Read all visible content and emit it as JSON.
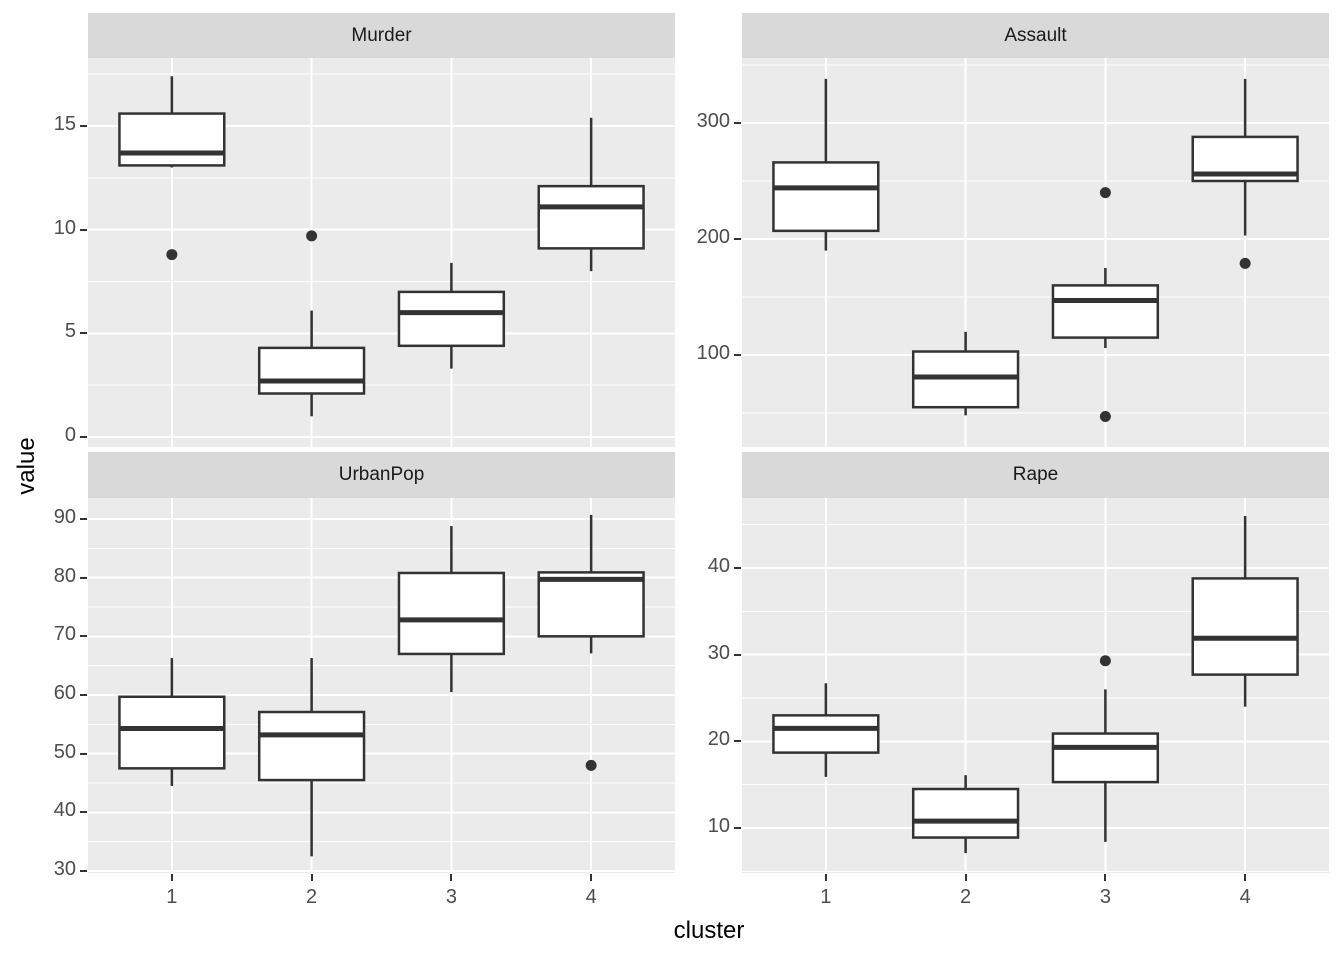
{
  "colors": {
    "panel_bg": "#EBEBEB",
    "strip_bg": "#D9D9D9",
    "grid": "#FFFFFF",
    "box_stroke": "#333333",
    "box_fill": "#FFFFFF",
    "outlier": "#333333",
    "tick_mark": "#333333",
    "axis_text": "#4D4D4D",
    "strip_text": "#1A1A1A",
    "title_text": "#000000",
    "background": "#FFFFFF"
  },
  "chart_data": {
    "type": "boxplot",
    "xlabel": "cluster",
    "ylabel": "value",
    "x_categories": [
      "1",
      "2",
      "3",
      "4"
    ],
    "facet_layout": "2x2",
    "grid": "on",
    "facets": [
      {
        "name": "Murder",
        "ylim": [
          -0.48,
          18.28
        ],
        "yticks": [
          0,
          5,
          10,
          15
        ],
        "yminor": [
          2.5,
          7.5,
          12.5,
          17.5
        ],
        "boxes": [
          {
            "cluster": "1",
            "whislo": 13.0,
            "q1": 13.1,
            "med": 13.7,
            "q3": 15.6,
            "whishi": 17.4,
            "outliers": [
              8.8
            ]
          },
          {
            "cluster": "2",
            "whislo": 1.0,
            "q1": 2.1,
            "med": 2.7,
            "q3": 4.3,
            "whishi": 6.1,
            "outliers": [
              9.7
            ]
          },
          {
            "cluster": "3",
            "whislo": 3.3,
            "q1": 4.4,
            "med": 6.0,
            "q3": 7.0,
            "whishi": 8.4,
            "outliers": []
          },
          {
            "cluster": "4",
            "whislo": 8.0,
            "q1": 9.1,
            "med": 11.1,
            "q3": 12.1,
            "whishi": 15.4,
            "outliers": []
          }
        ]
      },
      {
        "name": "Assault",
        "ylim": [
          20.7,
          356.0
        ],
        "yticks": [
          100,
          200,
          300
        ],
        "yminor": [
          50,
          150,
          250,
          350
        ],
        "boxes": [
          {
            "cluster": "1",
            "whislo": 190,
            "q1": 207,
            "med": 244,
            "q3": 266,
            "whishi": 338,
            "outliers": []
          },
          {
            "cluster": "2",
            "whislo": 48,
            "q1": 55,
            "med": 81,
            "q3": 103,
            "whishi": 120,
            "outliers": []
          },
          {
            "cluster": "3",
            "whislo": 106,
            "q1": 115,
            "med": 147,
            "q3": 160,
            "whishi": 175,
            "outliers": [
              240,
              47
            ]
          },
          {
            "cluster": "4",
            "whislo": 203,
            "q1": 250,
            "med": 256,
            "q3": 288,
            "whishi": 338,
            "outliers": [
              179
            ]
          }
        ]
      },
      {
        "name": "UrbanPop",
        "ylim": [
          29.66,
          93.58
        ],
        "yticks": [
          30,
          40,
          50,
          60,
          70,
          80,
          90
        ],
        "yminor": [
          35,
          45,
          55,
          65,
          75,
          85
        ],
        "boxes": [
          {
            "cluster": "1",
            "whislo": 44.5,
            "q1": 47.5,
            "med": 54.3,
            "q3": 59.7,
            "whishi": 66.3,
            "outliers": []
          },
          {
            "cluster": "2",
            "whislo": 32.5,
            "q1": 45.5,
            "med": 53.2,
            "q3": 57.1,
            "whishi": 66.3,
            "outliers": []
          },
          {
            "cluster": "3",
            "whislo": 60.5,
            "q1": 67.0,
            "med": 72.8,
            "q3": 80.8,
            "whishi": 88.8,
            "outliers": []
          },
          {
            "cluster": "4",
            "whislo": 67.1,
            "q1": 70.0,
            "med": 79.7,
            "q3": 80.9,
            "whishi": 90.7,
            "outliers": [
              48.0
            ]
          }
        ]
      },
      {
        "name": "Rape",
        "ylim": [
          4.81,
          48.08
        ],
        "yticks": [
          10,
          20,
          30,
          40
        ],
        "yminor": [
          5,
          15,
          25,
          35,
          45
        ],
        "boxes": [
          {
            "cluster": "1",
            "whislo": 15.9,
            "q1": 18.7,
            "med": 21.5,
            "q3": 23.0,
            "whishi": 26.7,
            "outliers": []
          },
          {
            "cluster": "2",
            "whislo": 7.1,
            "q1": 8.9,
            "med": 10.8,
            "q3": 14.5,
            "whishi": 16.1,
            "outliers": []
          },
          {
            "cluster": "3",
            "whislo": 8.4,
            "q1": 15.3,
            "med": 19.3,
            "q3": 20.9,
            "whishi": 26.0,
            "outliers": [
              29.3
            ]
          },
          {
            "cluster": "4",
            "whislo": 24.0,
            "q1": 27.7,
            "med": 31.9,
            "q3": 38.8,
            "whishi": 46.0,
            "outliers": []
          }
        ]
      }
    ]
  }
}
